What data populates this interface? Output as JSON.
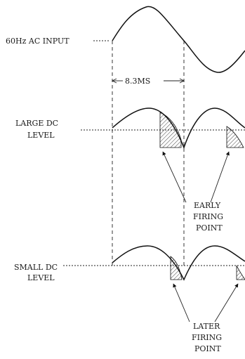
{
  "labels": {
    "ac_input": "60Hz AC INPUT",
    "interval": "8.3MS",
    "large_dc": [
      "LARGE DC",
      "LEVEL"
    ],
    "small_dc": [
      "SMALL DC",
      "LEVEL"
    ],
    "early": [
      "EARLY",
      "FIRING",
      "POINT"
    ],
    "later": [
      "LATER",
      "FIRING",
      "POINT"
    ]
  }
}
